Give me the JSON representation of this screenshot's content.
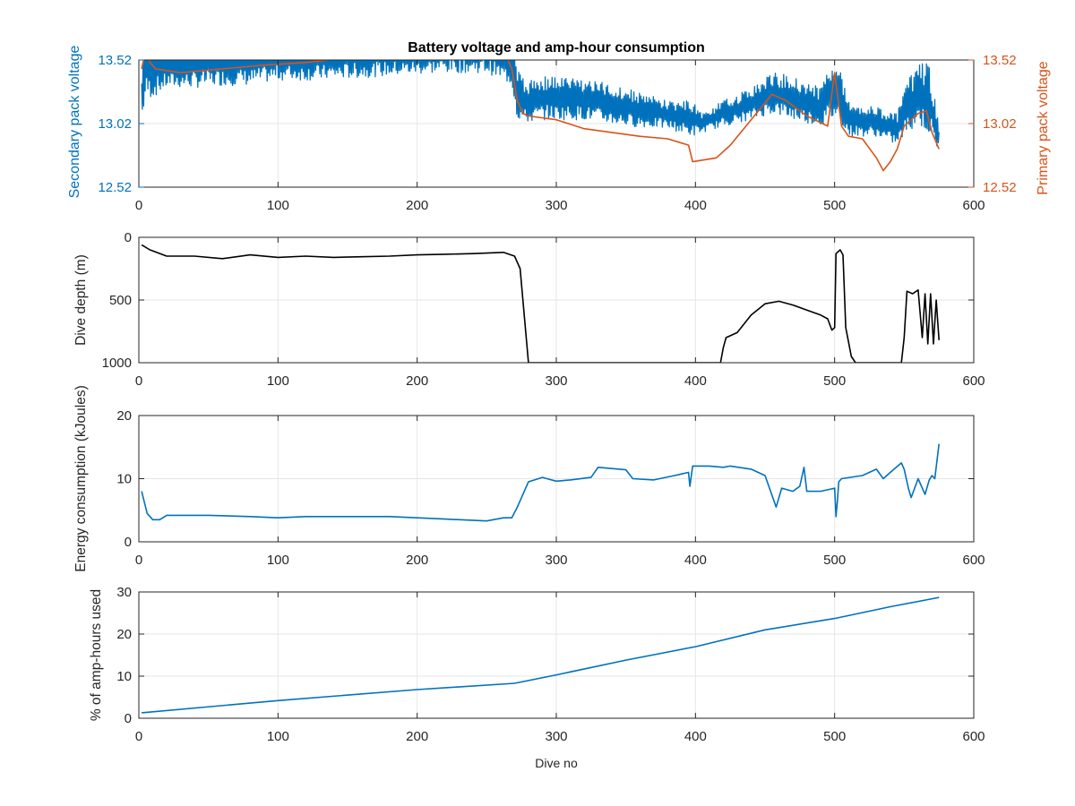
{
  "figure": {
    "title": "Battery voltage and amp-hour consumption",
    "xlabel": "Dive no"
  },
  "colors": {
    "blue": "#0072bd",
    "orange": "#d95319",
    "black": "#000000",
    "grid": "#e6e6e6",
    "axis": "#262626"
  },
  "chart_data": [
    {
      "type": "line",
      "title": "Battery voltage and amp-hour consumption",
      "xlim": [
        0,
        600
      ],
      "ylim": [
        12.52,
        13.52
      ],
      "yticks": [
        12.52,
        13.02,
        13.52
      ],
      "xticks": [
        0,
        100,
        200,
        300,
        400,
        500,
        600
      ],
      "ylabel_left": "Secondary pack voltage",
      "ylabel_right": "Primary pack voltage",
      "grid": true,
      "series": [
        {
          "axis": "left",
          "color": "#0072bd",
          "noisy": true,
          "x": [
            2,
            5,
            10,
            20,
            40,
            60,
            80,
            100,
            130,
            160,
            190,
            220,
            250,
            268,
            272,
            278,
            290,
            320,
            350,
            380,
            398,
            405,
            420,
            440,
            455,
            470,
            490,
            500,
            505,
            510,
            530,
            545,
            550,
            560,
            568,
            575
          ],
          "y_min": [
            13.02,
            13.22,
            13.22,
            13.3,
            13.3,
            13.32,
            13.32,
            13.36,
            13.36,
            13.38,
            13.4,
            13.42,
            13.42,
            13.32,
            13.05,
            13.02,
            13.05,
            13.05,
            13.0,
            12.98,
            12.92,
            12.95,
            13.0,
            13.05,
            13.1,
            13.05,
            13.0,
            13.05,
            13.02,
            12.92,
            12.92,
            12.85,
            12.92,
            13.02,
            12.92,
            12.8
          ],
          "y_max": [
            13.4,
            13.75,
            13.7,
            13.65,
            13.68,
            13.7,
            13.7,
            13.72,
            13.72,
            13.74,
            13.74,
            13.76,
            13.76,
            13.72,
            13.45,
            13.35,
            13.4,
            13.38,
            13.3,
            13.2,
            13.2,
            13.1,
            13.2,
            13.3,
            13.42,
            13.4,
            13.3,
            13.6,
            13.4,
            13.2,
            13.15,
            13.1,
            13.3,
            13.5,
            13.5,
            13.0
          ]
        },
        {
          "axis": "right",
          "color": "#d95319",
          "x": [
            2,
            5,
            8,
            12,
            30,
            60,
            90,
            120,
            160,
            200,
            230,
            250,
            262,
            268,
            272,
            276,
            280,
            300,
            320,
            340,
            360,
            380,
            395,
            398,
            415,
            425,
            440,
            455,
            465,
            480,
            495,
            500,
            502,
            505,
            510,
            520,
            530,
            535,
            540,
            545,
            550,
            560,
            566,
            570,
            575
          ],
          "y": [
            13.45,
            13.6,
            13.5,
            13.45,
            13.42,
            13.45,
            13.48,
            13.5,
            13.55,
            13.57,
            13.62,
            13.62,
            13.6,
            13.45,
            13.2,
            13.1,
            13.08,
            13.05,
            12.98,
            12.95,
            12.92,
            12.9,
            12.85,
            12.72,
            12.75,
            12.85,
            13.05,
            13.25,
            13.2,
            13.08,
            13.0,
            13.42,
            13.25,
            13.0,
            12.92,
            12.9,
            12.75,
            12.65,
            12.72,
            12.82,
            13.0,
            13.1,
            13.12,
            12.95,
            12.82
          ]
        }
      ]
    },
    {
      "type": "line",
      "xlim": [
        0,
        600
      ],
      "ylim": [
        0,
        1000
      ],
      "y_reversed": true,
      "yticks": [
        0,
        500,
        1000
      ],
      "xticks": [
        0,
        100,
        200,
        300,
        400,
        500,
        600
      ],
      "ylabel": "Dive depth (m)",
      "grid": true,
      "series": [
        {
          "color": "#000000",
          "x": [
            2,
            8,
            20,
            40,
            60,
            80,
            100,
            120,
            140,
            160,
            180,
            200,
            220,
            240,
            262,
            266,
            270,
            274,
            278,
            280,
            300,
            350,
            400,
            418,
            420,
            422,
            430,
            440,
            450,
            460,
            470,
            480,
            490,
            495,
            498,
            500,
            501,
            504,
            506,
            508,
            512,
            515,
            520,
            540,
            548,
            550,
            552,
            556,
            560,
            563,
            565,
            567,
            569,
            571,
            573,
            575
          ],
          "y": [
            60,
            100,
            150,
            150,
            170,
            140,
            160,
            150,
            160,
            155,
            150,
            140,
            135,
            130,
            120,
            135,
            150,
            250,
            750,
            1000,
            1000,
            1000,
            1000,
            1000,
            880,
            800,
            760,
            620,
            530,
            510,
            540,
            580,
            620,
            650,
            740,
            720,
            130,
            100,
            140,
            720,
            950,
            1000,
            1000,
            1000,
            1000,
            800,
            430,
            450,
            420,
            800,
            450,
            850,
            450,
            850,
            500,
            820
          ]
        }
      ]
    },
    {
      "type": "line",
      "xlim": [
        0,
        600
      ],
      "ylim": [
        0,
        20
      ],
      "yticks": [
        0,
        10,
        20
      ],
      "xticks": [
        0,
        100,
        200,
        300,
        400,
        500,
        600
      ],
      "ylabel": "Energy consumption (kJoules)",
      "grid": true,
      "series": [
        {
          "color": "#0072bd",
          "x": [
            2,
            6,
            10,
            15,
            20,
            50,
            80,
            100,
            120,
            150,
            180,
            200,
            220,
            250,
            262,
            268,
            272,
            276,
            280,
            290,
            300,
            310,
            325,
            330,
            350,
            355,
            370,
            385,
            395,
            396,
            398,
            410,
            420,
            425,
            440,
            450,
            458,
            462,
            470,
            475,
            478,
            480,
            490,
            500,
            501,
            502,
            503,
            505,
            520,
            530,
            535,
            540,
            548,
            550,
            553,
            555,
            560,
            565,
            568,
            570,
            572,
            575
          ],
          "y": [
            8,
            4.5,
            3.5,
            3.5,
            4.2,
            4.2,
            4.0,
            3.8,
            4.0,
            4.0,
            4.0,
            3.8,
            3.6,
            3.3,
            3.8,
            3.8,
            5.5,
            7.5,
            9.5,
            10.2,
            9.6,
            9.8,
            10.2,
            11.8,
            11.4,
            10.0,
            9.8,
            10.5,
            11.0,
            8.8,
            12.0,
            12.0,
            11.8,
            12.0,
            11.5,
            10.5,
            5.5,
            8.5,
            8.0,
            8.8,
            11.8,
            8.0,
            8.0,
            8.5,
            4.0,
            6.5,
            9.5,
            10.0,
            10.5,
            11.5,
            10.0,
            11.0,
            12.5,
            11.5,
            8.5,
            7.0,
            10.0,
            7.5,
            9.8,
            10.5,
            10.0,
            15.5
          ]
        }
      ]
    },
    {
      "type": "line",
      "xlim": [
        0,
        600
      ],
      "ylim": [
        0,
        30
      ],
      "yticks": [
        0,
        10,
        20,
        30
      ],
      "xticks": [
        0,
        100,
        200,
        300,
        400,
        500,
        600
      ],
      "ylabel": "% of amp-hours used",
      "xlabel": "Dive no",
      "grid": true,
      "series": [
        {
          "color": "#0072bd",
          "x": [
            2,
            100,
            200,
            270,
            300,
            350,
            400,
            450,
            500,
            540,
            575
          ],
          "y": [
            1.3,
            4.2,
            6.8,
            8.3,
            10.3,
            13.8,
            17.0,
            21.0,
            23.7,
            26.5,
            28.7
          ]
        }
      ]
    }
  ]
}
